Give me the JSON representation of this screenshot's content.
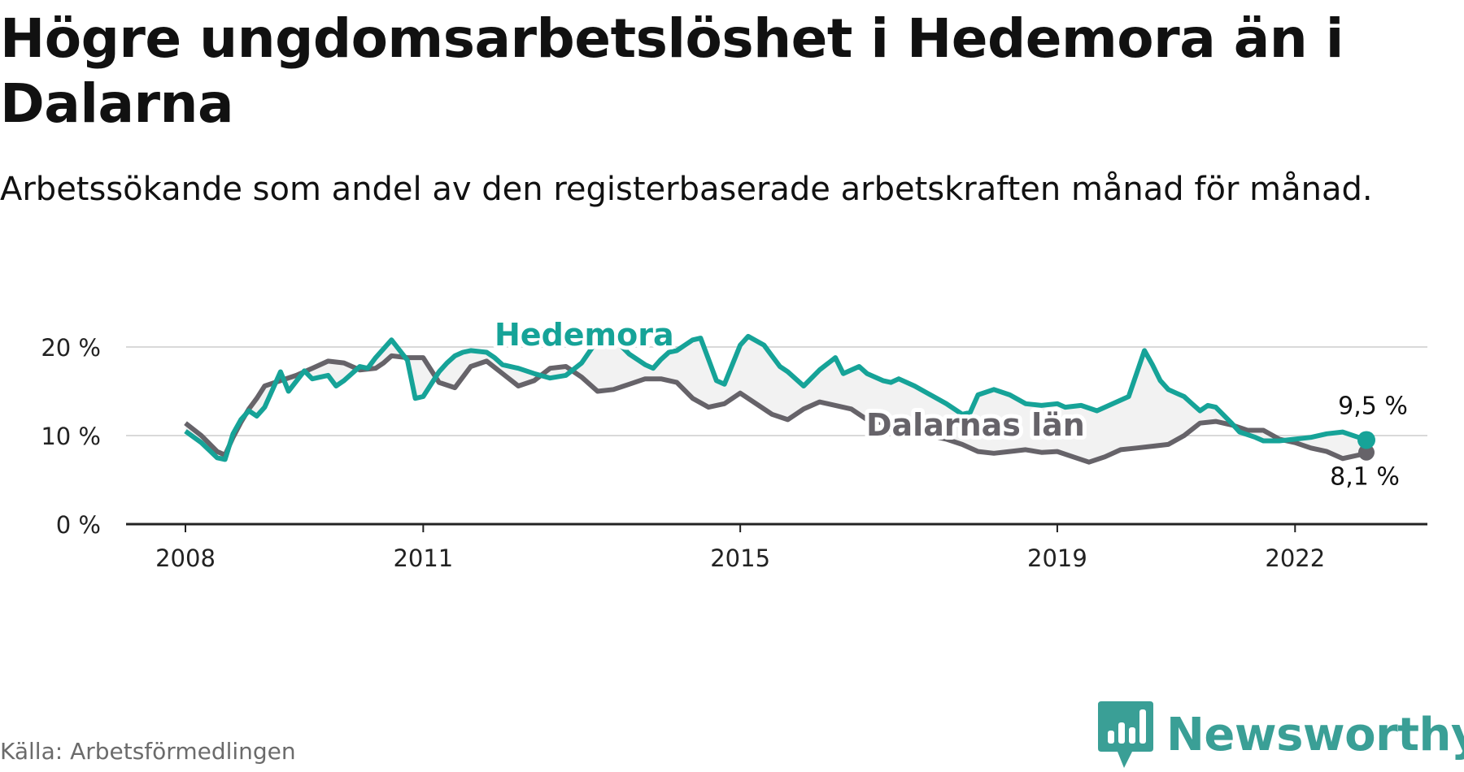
{
  "title": "Högre ungdomsarbetslöshet i Hedemora än i Dalarna",
  "subtitle": "Arbetssökande som andel av den registerbaserade arbetskraften månad för månad.",
  "source": "Källa: Arbetsförmedlingen",
  "brand": {
    "name": "Newsworthy",
    "logo_icon": "chart-bars-icon"
  },
  "colors": {
    "hedemora": "#16a398",
    "dalarna": "#666369",
    "grid": "#d9d9d9",
    "axis": "#222222",
    "band": "#e9e9e9"
  },
  "chart_data": {
    "type": "line",
    "ylim": [
      0,
      22
    ],
    "xlim": [
      2008,
      2023.3
    ],
    "ticks_y": [
      0,
      10,
      20
    ],
    "ticks_y_labels": [
      "0 %",
      "10 %",
      "20 %"
    ],
    "ticks_x": [
      2008,
      2011,
      2015,
      2019,
      2022
    ],
    "ticks_x_labels": [
      "2008",
      "2011",
      "2015",
      "2019",
      "2022"
    ],
    "series": [
      {
        "name": "Hedemora",
        "label": "Hedemora",
        "end_label": "9,5 %",
        "x": [
          2008.0,
          2008.2,
          2008.4,
          2008.5,
          2008.6,
          2008.7,
          2008.8,
          2008.9,
          2009.0,
          2009.2,
          2009.3,
          2009.5,
          2009.6,
          2009.8,
          2009.9,
          2010.0,
          2010.2,
          2010.3,
          2010.4,
          2010.6,
          2010.8,
          2010.9,
          2011.0,
          2011.2,
          2011.3,
          2011.4,
          2011.5,
          2011.6,
          2011.8,
          2011.9,
          2012.0,
          2012.2,
          2012.4,
          2012.6,
          2012.8,
          2013.0,
          2013.2,
          2013.4,
          2013.6,
          2013.8,
          2013.9,
          2014.0,
          2014.1,
          2014.2,
          2014.3,
          2014.4,
          2014.5,
          2014.6,
          2014.7,
          2014.8,
          2014.9,
          2015.0,
          2015.1,
          2015.3,
          2015.4,
          2015.5,
          2015.6,
          2015.8,
          2016.0,
          2016.2,
          2016.3,
          2016.5,
          2016.6,
          2016.8,
          2016.9,
          2017.0,
          2017.2,
          2017.4,
          2017.6,
          2017.8,
          2017.9,
          2018.0,
          2018.2,
          2018.4,
          2018.6,
          2018.8,
          2019.0,
          2019.1,
          2019.3,
          2019.5,
          2019.7,
          2019.9,
          2020.1,
          2020.2,
          2020.3,
          2020.4,
          2020.5,
          2020.6,
          2020.7,
          2020.8,
          2020.9,
          2021.0,
          2021.2,
          2021.3,
          2021.5,
          2021.6,
          2021.8,
          2022.0,
          2022.2,
          2022.4,
          2022.6,
          2022.8,
          2022.9
        ],
        "values": [
          10.5,
          9.2,
          7.5,
          7.3,
          10.2,
          11.8,
          12.8,
          12.2,
          13.2,
          17.2,
          15.0,
          17.3,
          16.4,
          16.8,
          15.6,
          16.2,
          17.8,
          17.6,
          18.8,
          20.8,
          18.5,
          14.2,
          14.4,
          17.2,
          18.2,
          19.0,
          19.4,
          19.6,
          19.4,
          18.8,
          18.0,
          17.6,
          17.0,
          16.5,
          16.8,
          18.2,
          20.8,
          21.0,
          19.2,
          18.0,
          17.6,
          18.6,
          19.4,
          19.6,
          20.2,
          20.8,
          21.0,
          18.6,
          16.2,
          15.8,
          18.0,
          20.2,
          21.2,
          20.2,
          19.0,
          17.8,
          17.2,
          15.6,
          17.4,
          18.8,
          17.0,
          17.8,
          17.0,
          16.2,
          16.0,
          16.4,
          15.6,
          14.6,
          13.6,
          12.4,
          12.6,
          14.6,
          15.2,
          14.6,
          13.6,
          13.4,
          13.6,
          13.2,
          13.4,
          12.8,
          13.6,
          14.4,
          19.6,
          18.0,
          16.2,
          15.2,
          14.8,
          14.4,
          13.6,
          12.8,
          13.4,
          13.2,
          11.4,
          10.4,
          9.8,
          9.4,
          9.4,
          9.6,
          9.8,
          10.2,
          10.4,
          9.8,
          9.5
        ]
      },
      {
        "name": "Dalarnas län",
        "label": "Dalarnas län",
        "end_label": "8,1 %",
        "x": [
          2008.0,
          2008.2,
          2008.4,
          2008.5,
          2008.6,
          2008.7,
          2008.8,
          2008.9,
          2009.0,
          2009.2,
          2009.4,
          2009.6,
          2009.8,
          2010.0,
          2010.2,
          2010.4,
          2010.5,
          2010.6,
          2010.8,
          2011.0,
          2011.2,
          2011.4,
          2011.6,
          2011.8,
          2012.0,
          2012.2,
          2012.4,
          2012.6,
          2012.8,
          2013.0,
          2013.2,
          2013.4,
          2013.6,
          2013.8,
          2014.0,
          2014.2,
          2014.4,
          2014.6,
          2014.8,
          2015.0,
          2015.2,
          2015.4,
          2015.6,
          2015.8,
          2016.0,
          2016.2,
          2016.4,
          2016.6,
          2016.8,
          2017.0,
          2017.2,
          2017.4,
          2017.6,
          2017.8,
          2018.0,
          2018.2,
          2018.4,
          2018.6,
          2018.8,
          2019.0,
          2019.2,
          2019.4,
          2019.6,
          2019.8,
          2020.0,
          2020.2,
          2020.4,
          2020.6,
          2020.8,
          2021.0,
          2021.2,
          2021.4,
          2021.6,
          2021.8,
          2022.0,
          2022.2,
          2022.4,
          2022.6,
          2022.8,
          2022.9
        ],
        "values": [
          11.4,
          10.0,
          8.2,
          7.8,
          9.8,
          11.5,
          13.0,
          14.2,
          15.6,
          16.2,
          16.8,
          17.6,
          18.4,
          18.2,
          17.4,
          17.6,
          18.2,
          19.0,
          18.8,
          18.8,
          16.0,
          15.4,
          17.8,
          18.4,
          17.0,
          15.6,
          16.2,
          17.6,
          17.8,
          16.6,
          15.0,
          15.2,
          15.8,
          16.4,
          16.4,
          16.0,
          14.2,
          13.2,
          13.6,
          14.8,
          13.6,
          12.4,
          11.8,
          13.0,
          13.8,
          13.4,
          13.0,
          11.8,
          11.4,
          11.0,
          10.6,
          10.0,
          9.6,
          9.0,
          8.2,
          8.0,
          8.2,
          8.4,
          8.1,
          8.2,
          7.6,
          7.0,
          7.6,
          8.4,
          8.6,
          8.8,
          9.0,
          10.0,
          11.4,
          11.6,
          11.2,
          10.6,
          10.6,
          9.6,
          9.2,
          8.6,
          8.2,
          7.4,
          7.8,
          8.1
        ]
      }
    ]
  }
}
